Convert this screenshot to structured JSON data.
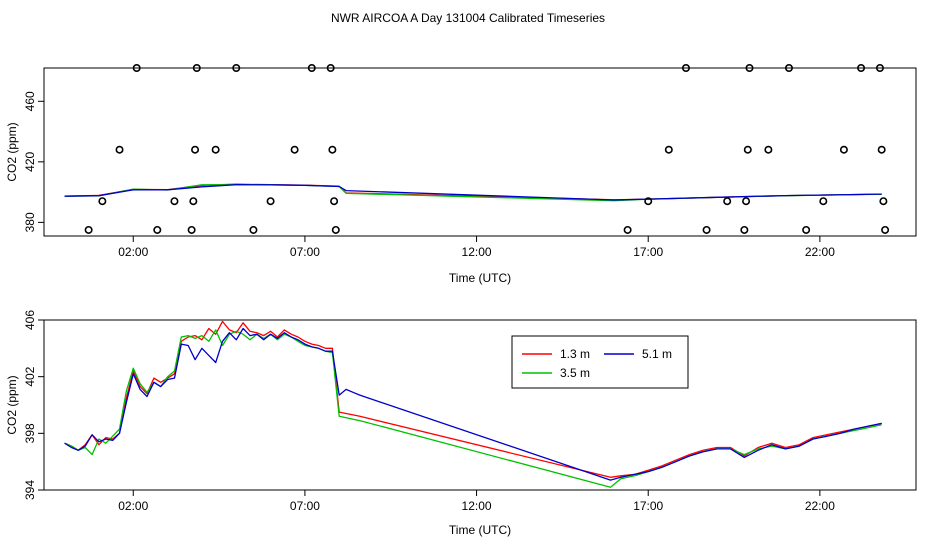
{
  "page": {
    "title": "NWR AIRCOA A  Day 131004  Calibrated Timeseries"
  },
  "colors": {
    "1.3 m": "#ff0000",
    "3.5 m": "#00c000",
    "5.1 m": "#0000cc",
    "points": "#000000"
  },
  "chart_data": [
    {
      "type": "scatter+line",
      "xlabel": "Time (UTC)",
      "ylabel": "CO2 (ppm)",
      "x_unit": "hours UTC",
      "xlim": [
        -0.6,
        24.8
      ],
      "ylim": [
        371,
        482
      ],
      "x_ticks": [
        2,
        7,
        12,
        17,
        22
      ],
      "x_tick_labels": [
        "02:00",
        "07:00",
        "12:00",
        "17:00",
        "22:00"
      ],
      "y_ticks": [
        380,
        420,
        460
      ],
      "y_tick_labels": [
        "380",
        "420",
        "460"
      ],
      "grid": false,
      "legend": "none",
      "calibration_points": [
        {
          "x": 0.7,
          "y": 375
        },
        {
          "x": 1.1,
          "y": 394
        },
        {
          "x": 1.6,
          "y": 428
        },
        {
          "x": 2.1,
          "y": 482
        },
        {
          "x": 2.7,
          "y": 375
        },
        {
          "x": 3.2,
          "y": 394
        },
        {
          "x": 3.7,
          "y": 375
        },
        {
          "x": 3.75,
          "y": 394
        },
        {
          "x": 3.8,
          "y": 428
        },
        {
          "x": 3.85,
          "y": 482
        },
        {
          "x": 4.4,
          "y": 428
        },
        {
          "x": 5.0,
          "y": 482
        },
        {
          "x": 5.5,
          "y": 375
        },
        {
          "x": 6.0,
          "y": 394
        },
        {
          "x": 6.7,
          "y": 428
        },
        {
          "x": 7.2,
          "y": 482
        },
        {
          "x": 7.75,
          "y": 482
        },
        {
          "x": 7.8,
          "y": 428
        },
        {
          "x": 7.85,
          "y": 394
        },
        {
          "x": 7.9,
          "y": 375
        },
        {
          "x": 16.4,
          "y": 375
        },
        {
          "x": 17.0,
          "y": 394
        },
        {
          "x": 17.6,
          "y": 428
        },
        {
          "x": 18.1,
          "y": 482
        },
        {
          "x": 18.7,
          "y": 375
        },
        {
          "x": 19.3,
          "y": 394
        },
        {
          "x": 19.8,
          "y": 375
        },
        {
          "x": 19.85,
          "y": 394
        },
        {
          "x": 19.9,
          "y": 428
        },
        {
          "x": 19.95,
          "y": 482
        },
        {
          "x": 20.5,
          "y": 428
        },
        {
          "x": 21.1,
          "y": 482
        },
        {
          "x": 21.6,
          "y": 375
        },
        {
          "x": 22.1,
          "y": 394
        },
        {
          "x": 22.7,
          "y": 428
        },
        {
          "x": 23.2,
          "y": 482
        },
        {
          "x": 23.75,
          "y": 482
        },
        {
          "x": 23.8,
          "y": 428
        },
        {
          "x": 23.85,
          "y": 394
        },
        {
          "x": 23.9,
          "y": 375
        }
      ],
      "series": [
        {
          "name": "1.3 m",
          "x": [
            0,
            1,
            2,
            3,
            4,
            5,
            6,
            7,
            8,
            8.2,
            16,
            17,
            19,
            21,
            23.8
          ],
          "values": [
            397.3,
            397.8,
            401.8,
            401.6,
            404.5,
            405.2,
            404.9,
            404.6,
            403.9,
            399.5,
            394.9,
            395.4,
            396.6,
            397.7,
            398.7
          ]
        },
        {
          "name": "3.5 m",
          "x": [
            0,
            1,
            2,
            3,
            4,
            5,
            6,
            7,
            8,
            8.2,
            16,
            17,
            19,
            21,
            23.8
          ],
          "values": [
            397.3,
            397.5,
            402.0,
            401.4,
            404.8,
            404.9,
            404.8,
            404.4,
            403.7,
            399.2,
            394.3,
            395.3,
            396.5,
            397.6,
            398.6
          ]
        },
        {
          "name": "5.1 m",
          "x": [
            0,
            1,
            2,
            3,
            4,
            5,
            6,
            7,
            8,
            8.2,
            16,
            17,
            19,
            21,
            23.8
          ],
          "values": [
            397.3,
            397.6,
            401.5,
            401.5,
            403.5,
            404.9,
            404.8,
            404.5,
            403.7,
            401.0,
            394.8,
            395.4,
            396.6,
            397.7,
            398.7
          ]
        }
      ]
    },
    {
      "type": "line",
      "xlabel": "Time (UTC)",
      "ylabel": "CO2 (ppm)",
      "x_unit": "hours UTC",
      "xlim": [
        -0.6,
        24.8
      ],
      "ylim": [
        394,
        406
      ],
      "x_ticks": [
        2,
        7,
        12,
        17,
        22
      ],
      "x_tick_labels": [
        "02:00",
        "07:00",
        "12:00",
        "17:00",
        "22:00"
      ],
      "y_ticks": [
        394,
        398,
        402,
        406
      ],
      "y_tick_labels": [
        "394",
        "398",
        "402",
        "406"
      ],
      "grid": false,
      "legend": "top-right",
      "series": [
        {
          "name": "1.3 m",
          "x": [
            0,
            0.2,
            0.4,
            0.6,
            0.8,
            1.0,
            1.2,
            1.4,
            1.6,
            1.8,
            2.0,
            2.2,
            2.4,
            2.6,
            2.8,
            3.0,
            3.2,
            3.4,
            3.6,
            3.8,
            4.0,
            4.2,
            4.4,
            4.6,
            4.8,
            5.0,
            5.2,
            5.4,
            5.6,
            5.8,
            6.0,
            6.2,
            6.4,
            6.6,
            6.8,
            7.0,
            7.2,
            7.4,
            7.6,
            7.8,
            8.0,
            8.2,
            8.4,
            8.6,
            15.9,
            16.2,
            16.6,
            17.0,
            17.4,
            17.8,
            18.2,
            18.6,
            19.0,
            19.4,
            19.8,
            20.2,
            20.6,
            21.0,
            21.4,
            21.8,
            22.2,
            22.6,
            23.0,
            23.4,
            23.8
          ],
          "values": [
            397.3,
            397.1,
            396.8,
            397.2,
            397.9,
            397.2,
            397.7,
            397.6,
            398.0,
            400.5,
            402.4,
            401.3,
            400.8,
            401.9,
            401.6,
            401.9,
            402.2,
            404.5,
            404.8,
            404.9,
            404.6,
            405.4,
            405.0,
            405.9,
            405.3,
            405.1,
            405.8,
            405.2,
            405.1,
            404.9,
            405.2,
            404.8,
            405.3,
            405.0,
            404.8,
            404.5,
            404.3,
            404.2,
            404.0,
            404.0,
            399.5,
            399.4,
            399.3,
            399.2,
            394.9,
            395.0,
            395.1,
            395.4,
            395.7,
            396.1,
            396.5,
            396.8,
            397.0,
            397.0,
            396.4,
            397.0,
            397.3,
            397.0,
            397.2,
            397.7,
            397.9,
            398.1,
            398.3,
            398.5,
            398.7
          ]
        },
        {
          "name": "3.5 m",
          "x": [
            0,
            0.2,
            0.4,
            0.6,
            0.8,
            1.0,
            1.2,
            1.4,
            1.6,
            1.8,
            2.0,
            2.2,
            2.4,
            2.6,
            2.8,
            3.0,
            3.2,
            3.4,
            3.6,
            3.8,
            4.0,
            4.2,
            4.4,
            4.6,
            4.8,
            5.0,
            5.2,
            5.4,
            5.6,
            5.8,
            6.0,
            6.2,
            6.4,
            6.6,
            6.8,
            7.0,
            7.2,
            7.4,
            7.6,
            7.8,
            8.0,
            8.2,
            8.4,
            8.6,
            15.9,
            16.2,
            16.6,
            17.0,
            17.4,
            17.8,
            18.2,
            18.6,
            19.0,
            19.4,
            19.8,
            20.2,
            20.6,
            21.0,
            21.4,
            21.8,
            22.2,
            22.6,
            23.0,
            23.4,
            23.8
          ],
          "values": [
            397.3,
            397.1,
            396.8,
            397.0,
            396.5,
            397.6,
            397.3,
            397.8,
            398.3,
            401.0,
            402.6,
            401.5,
            400.9,
            401.6,
            401.3,
            402.0,
            402.4,
            404.8,
            404.9,
            404.7,
            404.9,
            404.5,
            405.3,
            404.2,
            405.0,
            405.2,
            405.0,
            404.6,
            405.0,
            404.7,
            405.0,
            404.6,
            405.0,
            404.8,
            404.5,
            404.2,
            404.1,
            404.0,
            403.8,
            403.7,
            399.2,
            399.1,
            399.0,
            398.9,
            394.2,
            394.8,
            395.0,
            395.3,
            395.6,
            396.0,
            396.4,
            396.7,
            396.9,
            396.9,
            396.5,
            396.9,
            397.1,
            396.9,
            397.1,
            397.6,
            397.8,
            398.0,
            398.2,
            398.4,
            398.6
          ]
        },
        {
          "name": "5.1 m",
          "x": [
            0,
            0.2,
            0.4,
            0.6,
            0.8,
            1.0,
            1.2,
            1.4,
            1.6,
            1.8,
            2.0,
            2.2,
            2.4,
            2.6,
            2.8,
            3.0,
            3.2,
            3.4,
            3.6,
            3.8,
            4.0,
            4.2,
            4.4,
            4.6,
            4.8,
            5.0,
            5.2,
            5.4,
            5.6,
            5.8,
            6.0,
            6.2,
            6.4,
            6.6,
            6.8,
            7.0,
            7.2,
            7.4,
            7.6,
            7.8,
            8.0,
            8.2,
            8.4,
            8.6,
            15.9,
            16.2,
            16.6,
            17.0,
            17.4,
            17.8,
            18.2,
            18.6,
            19.0,
            19.4,
            19.8,
            20.2,
            20.6,
            21.0,
            21.4,
            21.8,
            22.2,
            22.6,
            23.0,
            23.4,
            23.8
          ],
          "values": [
            397.3,
            397.0,
            396.8,
            397.1,
            397.9,
            397.4,
            397.6,
            397.5,
            398.0,
            400.2,
            402.2,
            401.1,
            400.6,
            401.6,
            401.3,
            401.8,
            401.9,
            404.3,
            404.2,
            403.2,
            404.0,
            403.5,
            403.0,
            404.5,
            405.1,
            404.6,
            405.4,
            404.9,
            405.0,
            404.6,
            405.0,
            404.7,
            405.1,
            404.8,
            404.6,
            404.3,
            404.1,
            404.0,
            403.8,
            403.8,
            400.7,
            401.1,
            400.9,
            400.7,
            394.7,
            394.9,
            395.1,
            395.3,
            395.6,
            396.0,
            396.4,
            396.7,
            396.9,
            396.9,
            396.3,
            396.8,
            397.2,
            396.9,
            397.1,
            397.6,
            397.8,
            398.0,
            398.3,
            398.5,
            398.7
          ]
        }
      ],
      "legend_entries": [
        "1.3 m",
        "5.1 m",
        "3.5 m"
      ]
    }
  ]
}
